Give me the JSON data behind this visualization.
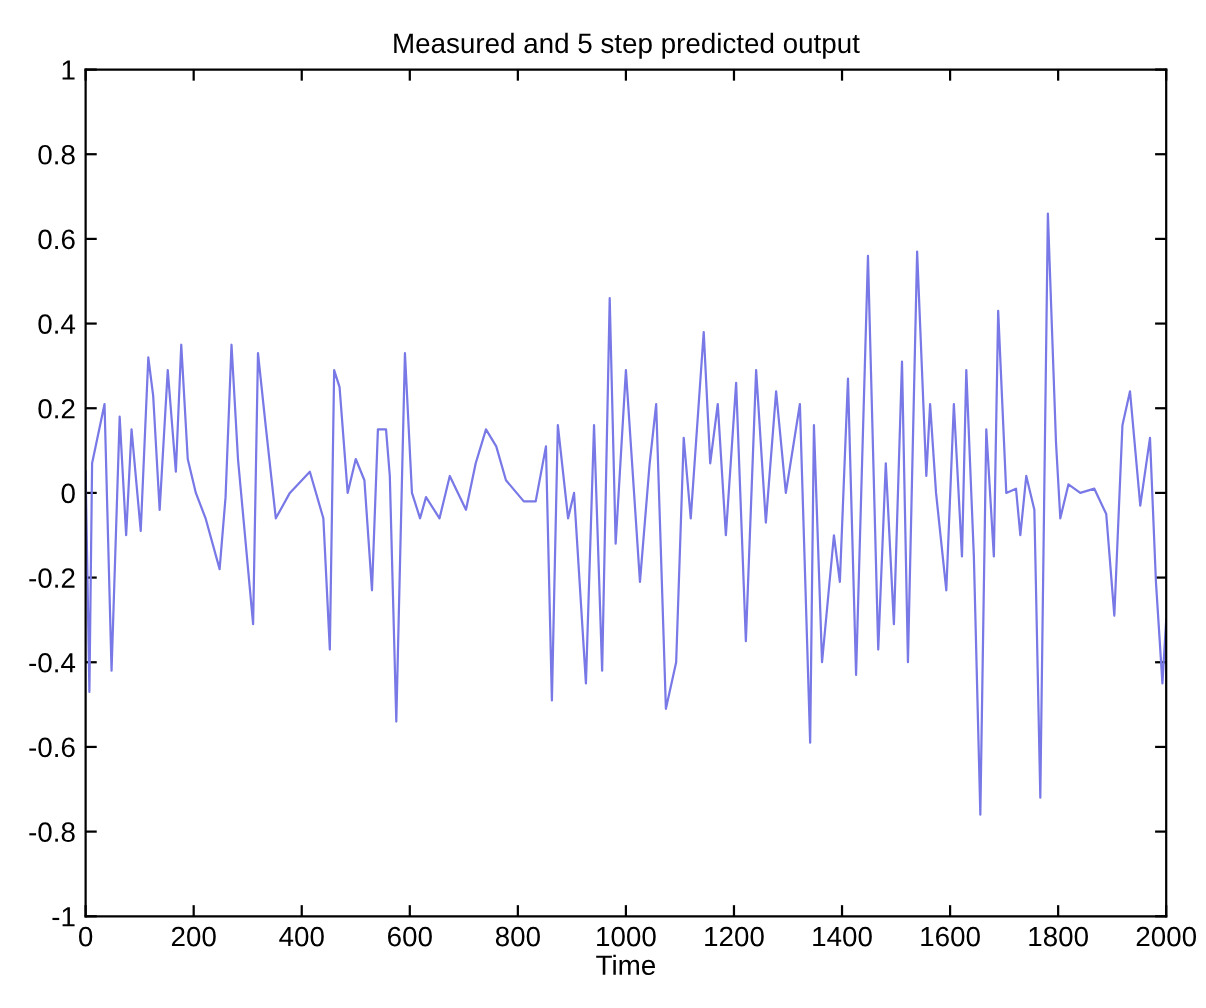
{
  "chart_data": {
    "type": "line",
    "title": "Measured and 5 step predicted output",
    "xlabel": "Time",
    "xlim": [
      0,
      2000
    ],
    "xticks": [
      0,
      200,
      400,
      600,
      800,
      1000,
      1200,
      1400,
      1600,
      1800,
      2000
    ],
    "ylim": [
      -1,
      1
    ],
    "yticks": [
      -1,
      -0.8,
      -0.6,
      -0.4,
      -0.2,
      0,
      0.2,
      0.4,
      0.6,
      0.8,
      1
    ],
    "grid": false,
    "legend": false,
    "series": [
      {
        "color": "#7878e6",
        "x": [
          0,
          7,
          12,
          35,
          48,
          63,
          75,
          85,
          102,
          116,
          125,
          137,
          152,
          167,
          177,
          189,
          204,
          222,
          248,
          259,
          270,
          282,
          310,
          319,
          334,
          352,
          378,
          415,
          440,
          452,
          460,
          470,
          485,
          500,
          516,
          530,
          541,
          556,
          563,
          575,
          591,
          604,
          619,
          630,
          655,
          674,
          704,
          722,
          741,
          760,
          778,
          811,
          833,
          852,
          863,
          874,
          893,
          904,
          926,
          941,
          956,
          970,
          981,
          1000,
          1026,
          1044,
          1056,
          1074,
          1093,
          1107,
          1120,
          1144,
          1156,
          1170,
          1185,
          1204,
          1222,
          1241,
          1259,
          1278,
          1296,
          1322,
          1341,
          1348,
          1363,
          1385,
          1396,
          1411,
          1426,
          1448,
          1467,
          1481,
          1496,
          1511,
          1522,
          1539,
          1556,
          1563,
          1574,
          1593,
          1607,
          1622,
          1630,
          1644,
          1656,
          1667,
          1681,
          1689,
          1704,
          1722,
          1730,
          1741,
          1756,
          1767,
          1781,
          1796,
          1804,
          1819,
          1841,
          1867,
          1889,
          1904,
          1919,
          1933,
          1952,
          1970,
          1981,
          1993,
          2000
        ],
        "values": [
          0.05,
          -0.47,
          0.07,
          0.21,
          -0.42,
          0.18,
          -0.1,
          0.15,
          -0.09,
          0.32,
          0.23,
          -0.04,
          0.29,
          0.05,
          0.35,
          0.08,
          0.0,
          -0.06,
          -0.18,
          -0.01,
          0.35,
          0.08,
          -0.31,
          0.33,
          0.15,
          -0.06,
          0.0,
          0.05,
          -0.06,
          -0.37,
          0.29,
          0.25,
          0.0,
          0.08,
          0.03,
          -0.23,
          0.15,
          0.15,
          0.04,
          -0.54,
          0.33,
          0.0,
          -0.06,
          -0.01,
          -0.06,
          0.04,
          -0.04,
          0.07,
          0.15,
          0.11,
          0.03,
          -0.02,
          -0.02,
          0.11,
          -0.49,
          0.16,
          -0.06,
          0.0,
          -0.45,
          0.16,
          -0.42,
          0.46,
          -0.12,
          0.29,
          -0.21,
          0.07,
          0.21,
          -0.51,
          -0.4,
          0.13,
          -0.06,
          0.38,
          0.07,
          0.21,
          -0.1,
          0.26,
          -0.35,
          0.29,
          -0.07,
          0.24,
          0.0,
          0.21,
          -0.59,
          0.16,
          -0.4,
          -0.1,
          -0.21,
          0.27,
          -0.43,
          0.56,
          -0.37,
          0.07,
          -0.31,
          0.31,
          -0.4,
          0.57,
          0.04,
          0.21,
          0.0,
          -0.23,
          0.21,
          -0.15,
          0.29,
          -0.15,
          -0.76,
          0.15,
          -0.15,
          0.43,
          0.0,
          0.01,
          -0.1,
          0.04,
          -0.04,
          -0.72,
          0.66,
          0.12,
          -0.06,
          0.02,
          0.0,
          0.01,
          -0.05,
          -0.29,
          0.16,
          0.24,
          -0.03,
          0.13,
          -0.21,
          -0.45,
          -0.3
        ]
      }
    ]
  }
}
